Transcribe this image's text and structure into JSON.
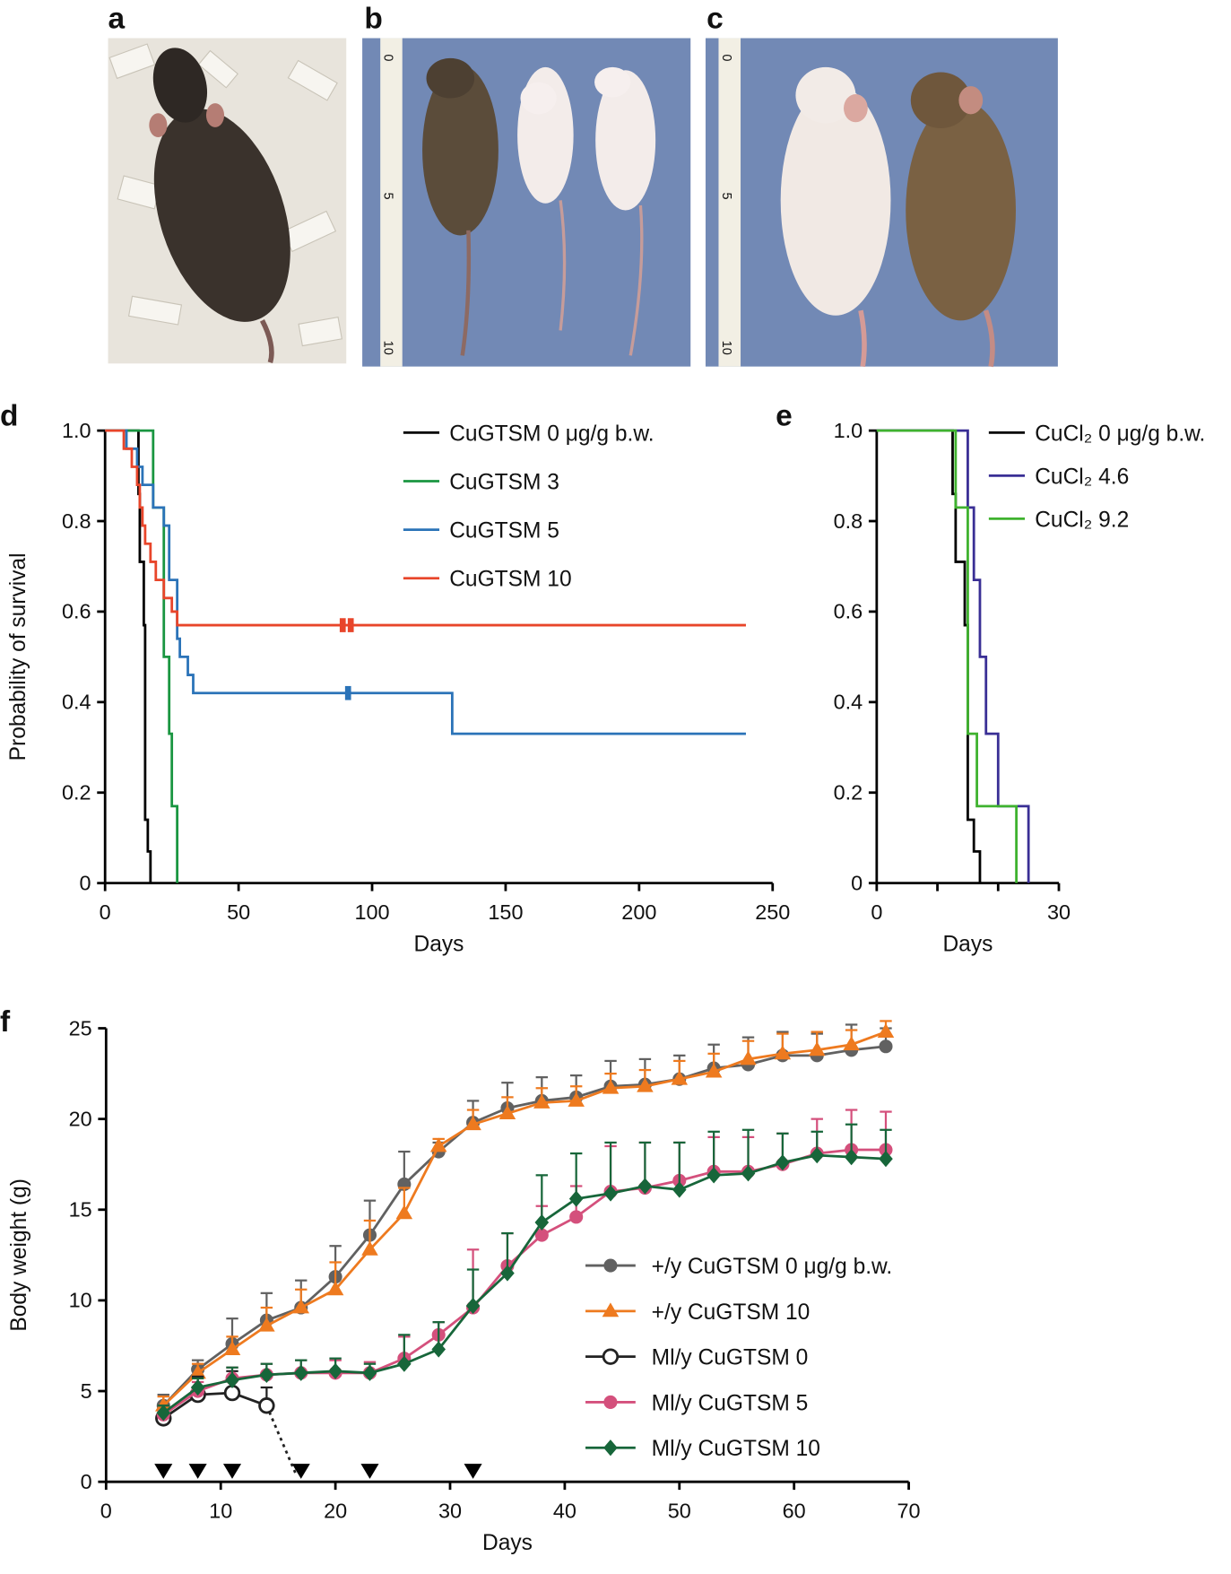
{
  "panel_labels": {
    "a": "a",
    "b": "b",
    "c": "c",
    "d": "d",
    "e": "e",
    "f": "f"
  },
  "photos": {
    "a": {
      "background": "#e8e4dc",
      "mouse_coat": "dark brown-black mottled"
    },
    "b": {
      "background": "#7289b5",
      "ruler_ticks": [
        "0",
        "5",
        "10"
      ]
    },
    "c": {
      "background": "#7289b5",
      "ruler_ticks": [
        "0",
        "5",
        "10"
      ]
    }
  },
  "chart_data": [
    {
      "id": "d",
      "type": "line",
      "subtype": "kaplan-meier",
      "xlabel": "Days",
      "ylabel": "Probability of survival",
      "xlim": [
        0,
        250
      ],
      "ylim": [
        0,
        1.0
      ],
      "xticks": [
        "0",
        "50",
        "100",
        "150",
        "200",
        "250"
      ],
      "yticks": [
        "0",
        "0.2",
        "0.4",
        "0.6",
        "0.8",
        "1.0"
      ],
      "grid": false,
      "legend_position": "top-right",
      "x_end": 240,
      "series": [
        {
          "name": "CuGTSM 0 μg/g b.w.",
          "color": "#000000",
          "steps": [
            [
              12.5,
              0.86
            ],
            [
              13,
              0.71
            ],
            [
              14.5,
              0.57
            ],
            [
              15,
              0.14
            ],
            [
              16,
              0.07
            ],
            [
              17,
              0
            ]
          ],
          "censored": []
        },
        {
          "name": "CuGTSM 3",
          "color": "#1a9641",
          "steps": [
            [
              18,
              0.83
            ],
            [
              22,
              0.5
            ],
            [
              24,
              0.33
            ],
            [
              25,
              0.17
            ],
            [
              27,
              0
            ]
          ],
          "censored": []
        },
        {
          "name": "CuGTSM 5",
          "color": "#2b73b8",
          "steps": [
            [
              8,
              0.96
            ],
            [
              12,
              0.92
            ],
            [
              14,
              0.88
            ],
            [
              18,
              0.83
            ],
            [
              22,
              0.79
            ],
            [
              24,
              0.67
            ],
            [
              27,
              0.54
            ],
            [
              28,
              0.5
            ],
            [
              31,
              0.46
            ],
            [
              33,
              0.42
            ],
            [
              130,
              0.33
            ]
          ],
          "censored": [
            91
          ]
        },
        {
          "name": "CuGTSM 10",
          "color": "#e8452a",
          "steps": [
            [
              7,
              0.96
            ],
            [
              10,
              0.92
            ],
            [
              12,
              0.88
            ],
            [
              13,
              0.83
            ],
            [
              14,
              0.79
            ],
            [
              15,
              0.75
            ],
            [
              17,
              0.71
            ],
            [
              19,
              0.67
            ],
            [
              22,
              0.63
            ],
            [
              25,
              0.6
            ],
            [
              27,
              0.57
            ]
          ],
          "censored": [
            89,
            92
          ]
        }
      ]
    },
    {
      "id": "e",
      "type": "line",
      "subtype": "kaplan-meier",
      "xlabel": "Days",
      "ylabel": "",
      "xlim": [
        0,
        30
      ],
      "ylim": [
        0,
        1.0
      ],
      "xticks": [
        "0",
        "30"
      ],
      "yticks": [
        "0",
        "0.2",
        "0.4",
        "0.6",
        "0.8",
        "1.0"
      ],
      "grid": false,
      "legend_position": "top-right",
      "series": [
        {
          "name": "CuCl₂ 0 μg/g b.w.",
          "color": "#000000",
          "steps": [
            [
              12.5,
              0.86
            ],
            [
              13,
              0.71
            ],
            [
              14.5,
              0.57
            ],
            [
              15,
              0.14
            ],
            [
              16,
              0.07
            ],
            [
              17,
              0
            ]
          ]
        },
        {
          "name": "CuCl₂ 4.6",
          "color": "#3a2f95",
          "steps": [
            [
              15,
              0.83
            ],
            [
              16,
              0.67
            ],
            [
              17,
              0.5
            ],
            [
              18,
              0.33
            ],
            [
              20,
              0.17
            ],
            [
              25,
              0
            ]
          ]
        },
        {
          "name": "CuCl₂ 9.2",
          "color": "#3fb22f",
          "steps": [
            [
              13,
              0.83
            ],
            [
              15,
              0.33
            ],
            [
              16.5,
              0.17
            ],
            [
              23,
              0
            ]
          ]
        }
      ]
    },
    {
      "id": "f",
      "type": "line",
      "xlabel": "Days",
      "ylabel": "Body weight (g)",
      "xlim": [
        0,
        70
      ],
      "ylim": [
        0,
        25
      ],
      "xticks": [
        "0",
        "10",
        "20",
        "30",
        "40",
        "50",
        "60",
        "70"
      ],
      "yticks": [
        "0",
        "5",
        "10",
        "15",
        "20",
        "25"
      ],
      "grid": false,
      "legend_position": "bottom-right",
      "injection_days": [
        5,
        8,
        11,
        17,
        23,
        32
      ],
      "series": [
        {
          "name": "+/y CuGTSM 0 μg/g b.w.",
          "color": "#616161",
          "marker": "circle",
          "fill": true,
          "x": [
            5,
            8,
            11,
            14,
            17,
            20,
            23,
            26,
            29,
            32,
            35,
            38,
            41,
            44,
            47,
            50,
            53,
            56,
            59,
            62,
            65,
            68
          ],
          "y": [
            4.2,
            6.2,
            7.6,
            8.9,
            9.6,
            11.3,
            13.6,
            16.4,
            18.2,
            19.8,
            20.6,
            21.0,
            21.2,
            21.8,
            21.9,
            22.2,
            22.8,
            23.0,
            23.5,
            23.5,
            23.8,
            24.0
          ],
          "err": [
            0.6,
            0.5,
            1.4,
            1.5,
            1.5,
            1.7,
            1.9,
            1.8,
            0.5,
            1.2,
            1.4,
            1.3,
            1.2,
            1.4,
            1.4,
            1.3,
            1.3,
            1.5,
            1.3,
            1.2,
            1.4,
            1.0
          ]
        },
        {
          "name": "+/y CuGTSM 10",
          "color": "#ee7a1f",
          "marker": "triangle",
          "fill": true,
          "x": [
            5,
            8,
            11,
            14,
            17,
            20,
            23,
            26,
            29,
            32,
            35,
            38,
            41,
            44,
            47,
            50,
            53,
            56,
            59,
            62,
            65,
            68
          ],
          "y": [
            4.2,
            6.0,
            7.3,
            8.6,
            9.6,
            10.6,
            12.8,
            14.8,
            18.5,
            19.7,
            20.3,
            20.9,
            21.0,
            21.7,
            21.8,
            22.2,
            22.6,
            23.3,
            23.6,
            23.8,
            24.1,
            24.8
          ],
          "err": [
            0.5,
            0.5,
            0.7,
            1.0,
            1.0,
            1.5,
            1.6,
            1.4,
            0.4,
            0.8,
            0.9,
            0.8,
            0.8,
            0.8,
            0.9,
            1.0,
            1.0,
            1.0,
            1.1,
            1.0,
            0.8,
            0.6
          ]
        },
        {
          "name": "Ml/y CuGTSM 0",
          "color": "#222222",
          "marker": "circle",
          "fill": false,
          "x": [
            5,
            8,
            11,
            14
          ],
          "y": [
            3.5,
            4.8,
            4.9,
            4.2
          ],
          "err": [
            0.7,
            1.0,
            1.2,
            1.0
          ],
          "extension": [
            [
              14,
              4.2
            ],
            [
              16.5,
              0.5
            ]
          ]
        },
        {
          "name": "Ml/y CuGTSM 5",
          "color": "#d4507c",
          "marker": "circle",
          "fill": true,
          "x": [
            5,
            8,
            11,
            14,
            17,
            20,
            23,
            26,
            29,
            32,
            35,
            38,
            41,
            44,
            47,
            50,
            53,
            56,
            59,
            62,
            65,
            68
          ],
          "y": [
            3.7,
            5.0,
            5.7,
            5.9,
            6.0,
            6.0,
            6.0,
            6.8,
            8.1,
            9.6,
            11.9,
            13.6,
            14.6,
            16.0,
            16.2,
            16.6,
            17.1,
            17.1,
            17.5,
            18.1,
            18.3,
            18.3
          ],
          "err": [
            0.5,
            0.5,
            0.6,
            0.6,
            0.7,
            0.7,
            0.6,
            1.2,
            0.7,
            3.2,
            1.8,
            1.6,
            1.7,
            2.5,
            2.5,
            2.1,
            1.9,
            1.9,
            1.7,
            1.9,
            2.2,
            2.1
          ]
        },
        {
          "name": "Ml/y CuGTSM 10",
          "color": "#17663a",
          "marker": "diamond",
          "fill": true,
          "x": [
            5,
            8,
            11,
            14,
            17,
            20,
            23,
            26,
            29,
            32,
            35,
            38,
            41,
            44,
            47,
            50,
            53,
            56,
            59,
            62,
            65,
            68
          ],
          "y": [
            3.8,
            5.2,
            5.6,
            5.9,
            6.0,
            6.1,
            6.0,
            6.5,
            7.3,
            9.7,
            11.5,
            14.3,
            15.6,
            15.9,
            16.3,
            16.1,
            16.9,
            17.0,
            17.6,
            18.0,
            17.9,
            17.8
          ],
          "err": [
            0.4,
            0.5,
            0.7,
            0.6,
            0.7,
            0.7,
            0.5,
            1.6,
            1.5,
            2.0,
            2.2,
            2.6,
            2.5,
            2.8,
            2.4,
            2.6,
            2.4,
            2.4,
            1.6,
            1.3,
            1.8,
            1.6
          ]
        }
      ]
    }
  ]
}
